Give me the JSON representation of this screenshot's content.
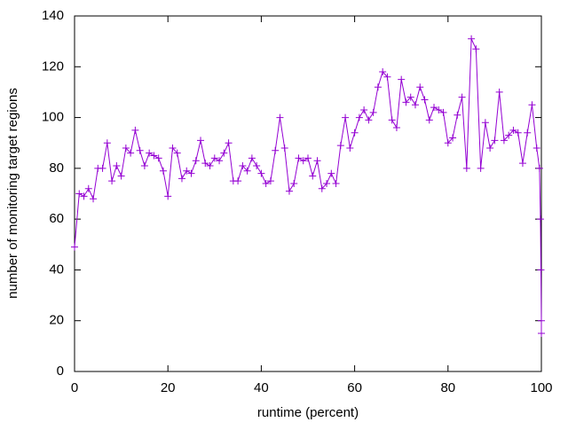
{
  "chart_data": {
    "type": "line",
    "xlabel": "runtime (percent)",
    "ylabel": "number of monitoring target regions",
    "color": "#9400d3",
    "x": [
      0,
      1,
      2,
      3,
      4,
      5,
      6,
      7,
      8,
      9,
      10,
      11,
      12,
      13,
      14,
      15,
      16,
      17,
      18,
      19,
      20,
      21,
      22,
      23,
      24,
      25,
      26,
      27,
      28,
      29,
      30,
      31,
      32,
      33,
      34,
      35,
      36,
      37,
      38,
      39,
      40,
      41,
      42,
      43,
      44,
      45,
      46,
      47,
      48,
      49,
      50,
      51,
      52,
      53,
      54,
      55,
      56,
      57,
      58,
      59,
      60,
      61,
      62,
      63,
      64,
      65,
      66,
      67,
      68,
      69,
      70,
      71,
      72,
      73,
      74,
      75,
      76,
      77,
      78,
      79,
      80,
      81,
      82,
      83,
      84,
      85,
      86,
      87,
      88,
      89,
      90,
      91,
      92,
      93,
      94,
      95,
      96,
      97,
      98,
      99,
      99.6,
      99.8,
      99.9,
      100,
      100
    ],
    "values": [
      49,
      70,
      69,
      72,
      68,
      80,
      80,
      90,
      75,
      81,
      77,
      88,
      86,
      95,
      87,
      81,
      86,
      85,
      84,
      79,
      69,
      88,
      86,
      76,
      79,
      78,
      83,
      91,
      82,
      81,
      84,
      83,
      86,
      90,
      75,
      75,
      81,
      79,
      84,
      81,
      78,
      74,
      75,
      87,
      100,
      88,
      71,
      74,
      84,
      83,
      84,
      77,
      83,
      72,
      74,
      78,
      74,
      89,
      100,
      88,
      94,
      100,
      103,
      99,
      102,
      112,
      118,
      116,
      99,
      96,
      115,
      106,
      108,
      105,
      112,
      107,
      99,
      104,
      103,
      102,
      90,
      92,
      101,
      108,
      80,
      131,
      127,
      80,
      98,
      88,
      91,
      110,
      91,
      93,
      95,
      94,
      82,
      94,
      105,
      88,
      80,
      60,
      40,
      20,
      15
    ],
    "xlim": [
      0,
      100
    ],
    "xticks": [
      0,
      20,
      40,
      60,
      80,
      100
    ],
    "ylim": [
      0,
      140
    ],
    "yticks": [
      0,
      20,
      40,
      60,
      80,
      100,
      120,
      140
    ]
  }
}
